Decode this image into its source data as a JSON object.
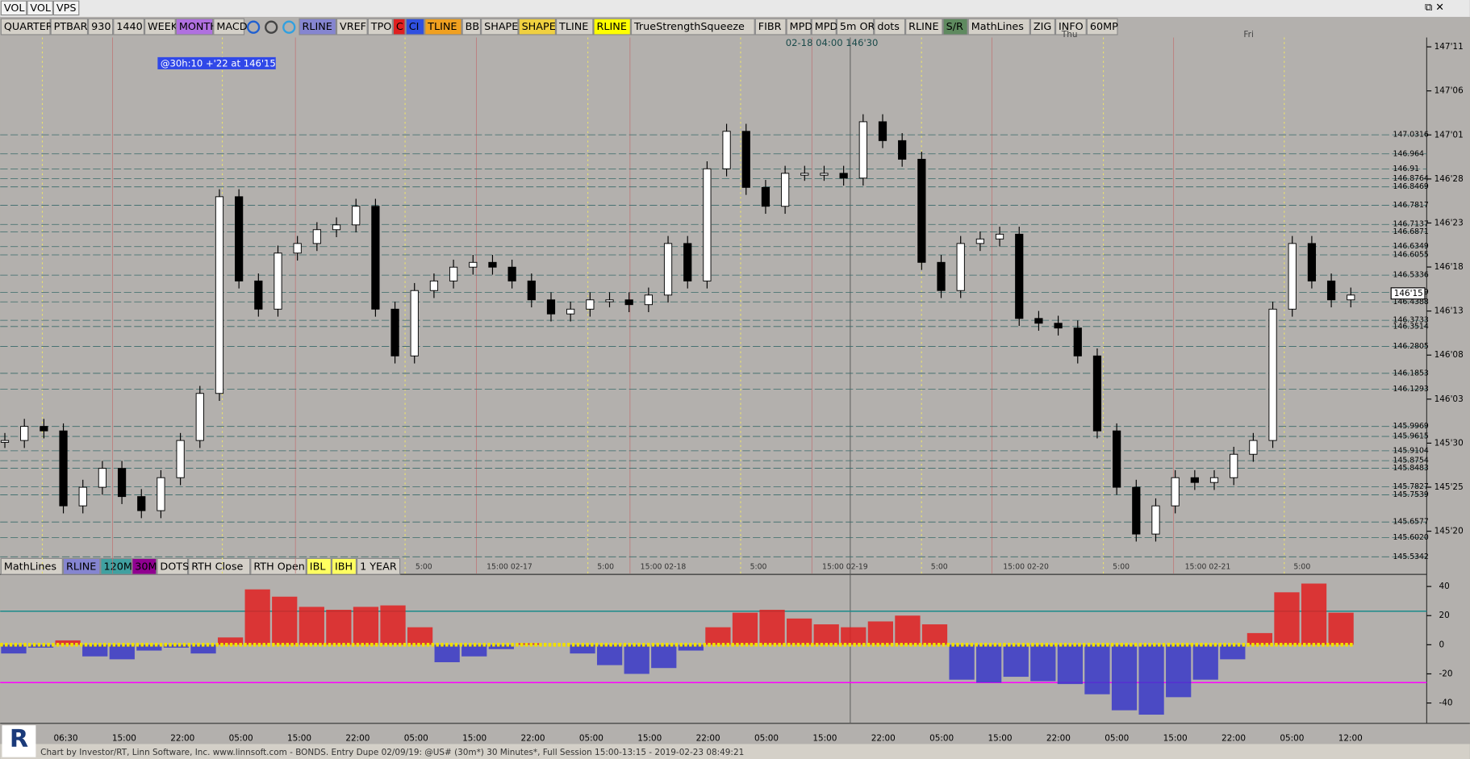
{
  "top_tabs": [
    "VOL",
    "VOL",
    "VPS"
  ],
  "toolbar": [
    {
      "label": "QUARTER"
    },
    {
      "label": "PTBAR"
    },
    {
      "label": "930"
    },
    {
      "label": "1440"
    },
    {
      "label": "WEEK"
    },
    {
      "label": "MONTH",
      "bg": "#b070e0"
    },
    {
      "label": "MACD"
    },
    {
      "label": "RLINE",
      "bg": "#8585d0"
    },
    {
      "label": "VREF"
    },
    {
      "label": "TPO"
    },
    {
      "label": "C",
      "bg": "#e02020"
    },
    {
      "label": "CI",
      "bg": "#3050e0"
    },
    {
      "label": "TLINE",
      "bg": "#f0a020"
    },
    {
      "label": "BB"
    },
    {
      "label": "SHAPE"
    },
    {
      "label": "SHAPE",
      "bg": "#f0d040"
    },
    {
      "label": "TLINE"
    },
    {
      "label": "RLINE",
      "bg": "#ffff00"
    },
    {
      "label": "TrueStrengthSqueeze"
    },
    {
      "label": "FIBR"
    },
    {
      "label": "MPD"
    },
    {
      "label": "MPD"
    },
    {
      "label": "5m OR"
    },
    {
      "label": "dots"
    },
    {
      "label": "RLINE"
    },
    {
      "label": "S/R",
      "bg": "#5f8a5f"
    },
    {
      "label": "MathLines"
    },
    {
      "label": "ZIG"
    },
    {
      "label": "INFO"
    },
    {
      "label": "60MP"
    }
  ],
  "indicator_bar": [
    {
      "label": "MathLines"
    },
    {
      "label": "RLINE",
      "bg": "#8585d0"
    },
    {
      "label": "120M",
      "bg": "#40a0a0"
    },
    {
      "label": "30M",
      "bg": "#900090"
    },
    {
      "label": "DOTS"
    },
    {
      "label": "RTH Close"
    },
    {
      "label": "RTH Open"
    },
    {
      "label": "IBL",
      "bg": "#ffff60"
    },
    {
      "label": "IBH",
      "bg": "#ffff60"
    },
    {
      "label": "1 YEAR"
    }
  ],
  "chart_data": [
    {
      "type": "candlestick",
      "annotation": "@30h:10  +'22 at 146'15",
      "crosshair_label": "02-18 04:00  146'30",
      "day_labels": [
        "Thu",
        "Fri"
      ],
      "session_labels": [
        "5:00",
        "15:00 02-17",
        "5:00",
        "15:00 02-18",
        "5:00",
        "15:00 02-19",
        "5:00",
        "15:00 02-20",
        "5:00",
        "15:00 02-21",
        "5:00"
      ],
      "xtick_labels": [
        "06:30",
        "15:00",
        "22:00",
        "05:00",
        "15:00",
        "22:00",
        "05:00",
        "15:00",
        "22:00",
        "05:00",
        "15:00",
        "22:00",
        "05:00",
        "15:00",
        "22:00",
        "05:00",
        "15:00",
        "22:00",
        "05:00",
        "15:00",
        "22:00",
        "05:00",
        "12:00"
      ],
      "closes": [
        145.947,
        145.997,
        145.981,
        145.715,
        145.781,
        145.848,
        145.748,
        145.698,
        145.815,
        145.947,
        146.114,
        146.812,
        146.513,
        146.413,
        146.612,
        146.646,
        146.695,
        146.712,
        146.778,
        146.413,
        146.247,
        146.479,
        146.513,
        146.562,
        146.579,
        146.562,
        146.513,
        146.446,
        146.396,
        146.413,
        146.446,
        146.446,
        146.429,
        146.463,
        146.646,
        146.513,
        146.911,
        147.044,
        146.845,
        146.778,
        146.895,
        146.895,
        146.895,
        146.878,
        147.078,
        147.011,
        146.945,
        146.579,
        146.479,
        146.646,
        146.662,
        146.679,
        146.38,
        146.363,
        146.346,
        146.247,
        145.981,
        145.781,
        145.615,
        145.715,
        145.815,
        145.798,
        145.815,
        145.898,
        145.947,
        146.413,
        146.646,
        146.513,
        146.446,
        146.463
      ],
      "up_color": "#ffffff",
      "down_color": "#000000",
      "ylim": [
        145.515,
        147.51
      ],
      "yticks": [
        {
          "value": 147.34375,
          "label": "147'11"
        },
        {
          "value": 147.1875,
          "label": "147'06"
        },
        {
          "value": 147.03125,
          "label": "147'01"
        },
        {
          "value": 146.875,
          "label": "146'28"
        },
        {
          "value": 146.71875,
          "label": "146'23"
        },
        {
          "value": 146.5625,
          "label": "146'18"
        },
        {
          "value": 146.40625,
          "label": "146'13"
        },
        {
          "value": 146.25,
          "label": "146'08"
        },
        {
          "value": 146.09375,
          "label": "146'03"
        },
        {
          "value": 145.9375,
          "label": "145'30"
        },
        {
          "value": 145.78125,
          "label": "145'25"
        },
        {
          "value": 145.625,
          "label": "145'20"
        }
      ],
      "levels": [
        147.0316,
        146.964,
        146.91,
        146.8764,
        146.8469,
        146.7817,
        146.7137,
        146.6871,
        146.6349,
        146.6055,
        146.5336,
        146.4729,
        146.4388,
        146.3733,
        146.3514,
        146.2805,
        146.1853,
        146.1293,
        145.9969,
        145.9615,
        145.9104,
        145.8754,
        145.8483,
        145.7827,
        145.7539,
        145.6577,
        {
          "value": 145.602,
          "label": "145.6020"
        },
        145.5342
      ],
      "last_price": {
        "value": 146.46875,
        "label": "146'15"
      }
    },
    {
      "type": "bar",
      "values": [
        -6,
        -2,
        3,
        -8,
        -10,
        -4,
        -2,
        -6,
        5,
        38,
        33,
        26,
        24,
        26,
        27,
        12,
        -12,
        -8,
        -3,
        1,
        0,
        -6,
        -14,
        -20,
        -16,
        -4,
        12,
        22,
        24,
        18,
        14,
        12,
        16,
        20,
        14,
        -24,
        -26,
        -22,
        -25,
        -27,
        -34,
        -45,
        -48,
        -36,
        -24,
        -10,
        8,
        36,
        42,
        22
      ],
      "up_color": "#e02020",
      "down_color": "#3838c8",
      "ylim": [
        -54,
        47
      ],
      "yticks": [
        40,
        20,
        0,
        -20,
        -40
      ],
      "ref_lines": [
        {
          "value": 23,
          "color": "#1a8a8a"
        },
        {
          "value": -26,
          "color": "#ff00ff"
        }
      ]
    }
  ],
  "status": "Chart by Investor/RT, Linn Software, Inc. www.linnsoft.com - BONDS. Entry Dupe    02/09/19: @US# (30m*) 30 Minutes*, Full Session 15:00-13:15 - 2019-02-23 08:49:21"
}
